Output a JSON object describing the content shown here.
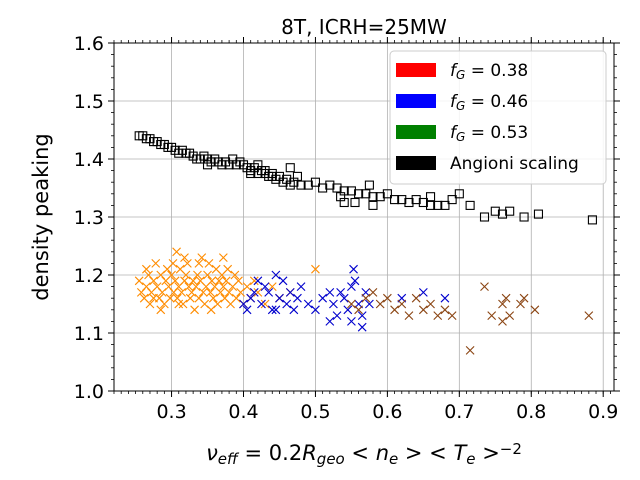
{
  "chart_data": {
    "type": "scatter",
    "title": "8T, ICRH=25MW",
    "xlabel": "ν_eff = 0.2R_geo < n_e > < T_e >^-2",
    "ylabel": "density peaking",
    "xlim": [
      0.22,
      0.915
    ],
    "ylim": [
      1.0,
      1.6
    ],
    "xticks": [
      0.3,
      0.4,
      0.5,
      0.6,
      0.7,
      0.8,
      0.9
    ],
    "xtick_labels": [
      "0.3",
      "0.4",
      "0.5",
      "0.6",
      "0.7",
      "0.8",
      "0.9"
    ],
    "yticks": [
      1.0,
      1.1,
      1.2,
      1.3,
      1.4,
      1.5,
      1.6
    ],
    "ytick_labels": [
      "1.0",
      "1.1",
      "1.2",
      "1.3",
      "1.4",
      "1.5",
      "1.6"
    ],
    "grid": true,
    "legend_position": "top-right",
    "legend": [
      {
        "label": "f_G = 0.38",
        "color": "#ff0000"
      },
      {
        "label": "f_G = 0.46",
        "color": "#0000ff"
      },
      {
        "label": "f_G = 0.53",
        "color": "#008000"
      },
      {
        "label": "Angioni scaling",
        "color": "#000000"
      }
    ],
    "series": [
      {
        "name": "f_G = 0.38",
        "marker": "x",
        "color": "#ff8c00",
        "points": [
          [
            0.255,
            1.19
          ],
          [
            0.258,
            1.17
          ],
          [
            0.262,
            1.16
          ],
          [
            0.265,
            1.18
          ],
          [
            0.268,
            1.2
          ],
          [
            0.27,
            1.15
          ],
          [
            0.272,
            1.17
          ],
          [
            0.275,
            1.19
          ],
          [
            0.278,
            1.22
          ],
          [
            0.28,
            1.18
          ],
          [
            0.283,
            1.16
          ],
          [
            0.285,
            1.2
          ],
          [
            0.287,
            1.17
          ],
          [
            0.29,
            1.15
          ],
          [
            0.292,
            1.19
          ],
          [
            0.294,
            1.21
          ],
          [
            0.296,
            1.18
          ],
          [
            0.298,
            1.16
          ],
          [
            0.3,
            1.2
          ],
          [
            0.302,
            1.22
          ],
          [
            0.303,
            1.17
          ],
          [
            0.305,
            1.19
          ],
          [
            0.307,
            1.24
          ],
          [
            0.308,
            1.16
          ],
          [
            0.31,
            1.18
          ],
          [
            0.312,
            1.21
          ],
          [
            0.314,
            1.17
          ],
          [
            0.316,
            1.15
          ],
          [
            0.318,
            1.19
          ],
          [
            0.32,
            1.2
          ],
          [
            0.322,
            1.22
          ],
          [
            0.324,
            1.18
          ],
          [
            0.326,
            1.16
          ],
          [
            0.328,
            1.17
          ],
          [
            0.33,
            1.19
          ],
          [
            0.332,
            1.14
          ],
          [
            0.334,
            1.18
          ],
          [
            0.336,
            1.2
          ],
          [
            0.338,
            1.16
          ],
          [
            0.34,
            1.19
          ],
          [
            0.342,
            1.23
          ],
          [
            0.344,
            1.17
          ],
          [
            0.346,
            1.15
          ],
          [
            0.348,
            1.18
          ],
          [
            0.35,
            1.2
          ],
          [
            0.352,
            1.22
          ],
          [
            0.354,
            1.17
          ],
          [
            0.356,
            1.19
          ],
          [
            0.358,
            1.16
          ],
          [
            0.36,
            1.18
          ],
          [
            0.362,
            1.21
          ],
          [
            0.364,
            1.15
          ],
          [
            0.366,
            1.19
          ],
          [
            0.368,
            1.17
          ],
          [
            0.37,
            1.2
          ],
          [
            0.372,
            1.18
          ],
          [
            0.374,
            1.16
          ],
          [
            0.376,
            1.19
          ],
          [
            0.378,
            1.21
          ],
          [
            0.38,
            1.17
          ],
          [
            0.382,
            1.15
          ],
          [
            0.385,
            1.18
          ],
          [
            0.388,
            1.2
          ],
          [
            0.39,
            1.16
          ],
          [
            0.393,
            1.19
          ],
          [
            0.396,
            1.17
          ],
          [
            0.4,
            1.15
          ],
          [
            0.405,
            1.18
          ],
          [
            0.41,
            1.16
          ],
          [
            0.415,
            1.19
          ],
          [
            0.42,
            1.17
          ],
          [
            0.43,
            1.15
          ],
          [
            0.44,
            1.18
          ],
          [
            0.45,
            1.16
          ],
          [
            0.465,
            1.17
          ],
          [
            0.5,
            1.21
          ],
          [
            0.265,
            1.21
          ],
          [
            0.285,
            1.14
          ],
          [
            0.318,
            1.23
          ],
          [
            0.338,
            1.22
          ],
          [
            0.372,
            1.23
          ],
          [
            0.355,
            1.14
          ],
          [
            0.31,
            1.15
          ],
          [
            0.275,
            1.16
          ]
        ]
      },
      {
        "name": "f_G = 0.46",
        "marker": "x",
        "color": "#0000cd",
        "points": [
          [
            0.4,
            1.15
          ],
          [
            0.405,
            1.14
          ],
          [
            0.41,
            1.16
          ],
          [
            0.415,
            1.17
          ],
          [
            0.42,
            1.19
          ],
          [
            0.425,
            1.15
          ],
          [
            0.43,
            1.18
          ],
          [
            0.435,
            1.17
          ],
          [
            0.44,
            1.14
          ],
          [
            0.445,
            1.2
          ],
          [
            0.45,
            1.16
          ],
          [
            0.455,
            1.19
          ],
          [
            0.46,
            1.15
          ],
          [
            0.465,
            1.17
          ],
          [
            0.47,
            1.14
          ],
          [
            0.475,
            1.16
          ],
          [
            0.48,
            1.18
          ],
          [
            0.49,
            1.15
          ],
          [
            0.5,
            1.14
          ],
          [
            0.51,
            1.16
          ],
          [
            0.52,
            1.12
          ],
          [
            0.525,
            1.15
          ],
          [
            0.53,
            1.13
          ],
          [
            0.535,
            1.17
          ],
          [
            0.54,
            1.16
          ],
          [
            0.545,
            1.14
          ],
          [
            0.55,
            1.18
          ],
          [
            0.553,
            1.21
          ],
          [
            0.555,
            1.19
          ],
          [
            0.56,
            1.15
          ],
          [
            0.565,
            1.13
          ],
          [
            0.57,
            1.17
          ],
          [
            0.575,
            1.15
          ],
          [
            0.62,
            1.16
          ],
          [
            0.65,
            1.17
          ],
          [
            0.68,
            1.16
          ],
          [
            0.445,
            1.14
          ],
          [
            0.52,
            1.17
          ],
          [
            0.55,
            1.12
          ],
          [
            0.565,
            1.11
          ]
        ]
      },
      {
        "name": "f_G = 0.53",
        "marker": "x",
        "color": "#8b4513",
        "points": [
          [
            0.55,
            1.15
          ],
          [
            0.56,
            1.14
          ],
          [
            0.57,
            1.16
          ],
          [
            0.58,
            1.17
          ],
          [
            0.59,
            1.15
          ],
          [
            0.6,
            1.16
          ],
          [
            0.61,
            1.14
          ],
          [
            0.62,
            1.15
          ],
          [
            0.63,
            1.13
          ],
          [
            0.64,
            1.16
          ],
          [
            0.65,
            1.14
          ],
          [
            0.66,
            1.15
          ],
          [
            0.67,
            1.13
          ],
          [
            0.68,
            1.14
          ],
          [
            0.69,
            1.13
          ],
          [
            0.715,
            1.07
          ],
          [
            0.735,
            1.18
          ],
          [
            0.745,
            1.13
          ],
          [
            0.76,
            1.15
          ],
          [
            0.765,
            1.16
          ],
          [
            0.77,
            1.13
          ],
          [
            0.785,
            1.15
          ],
          [
            0.79,
            1.16
          ],
          [
            0.805,
            1.14
          ],
          [
            0.88,
            1.13
          ],
          [
            0.76,
            1.12
          ]
        ]
      },
      {
        "name": "Angioni scaling",
        "marker": "square",
        "color": "#000000",
        "points": [
          [
            0.255,
            1.44
          ],
          [
            0.26,
            1.44
          ],
          [
            0.265,
            1.435
          ],
          [
            0.27,
            1.435
          ],
          [
            0.275,
            1.43
          ],
          [
            0.28,
            1.43
          ],
          [
            0.285,
            1.425
          ],
          [
            0.29,
            1.425
          ],
          [
            0.295,
            1.42
          ],
          [
            0.3,
            1.42
          ],
          [
            0.305,
            1.415
          ],
          [
            0.31,
            1.41
          ],
          [
            0.315,
            1.415
          ],
          [
            0.32,
            1.41
          ],
          [
            0.325,
            1.41
          ],
          [
            0.33,
            1.405
          ],
          [
            0.335,
            1.4
          ],
          [
            0.34,
            1.4
          ],
          [
            0.345,
            1.405
          ],
          [
            0.35,
            1.4
          ],
          [
            0.355,
            1.395
          ],
          [
            0.36,
            1.4
          ],
          [
            0.365,
            1.395
          ],
          [
            0.37,
            1.39
          ],
          [
            0.375,
            1.395
          ],
          [
            0.38,
            1.39
          ],
          [
            0.385,
            1.4
          ],
          [
            0.39,
            1.39
          ],
          [
            0.395,
            1.395
          ],
          [
            0.4,
            1.39
          ],
          [
            0.405,
            1.385
          ],
          [
            0.41,
            1.38
          ],
          [
            0.415,
            1.385
          ],
          [
            0.42,
            1.375
          ],
          [
            0.425,
            1.38
          ],
          [
            0.43,
            1.375
          ],
          [
            0.435,
            1.37
          ],
          [
            0.44,
            1.37
          ],
          [
            0.445,
            1.365
          ],
          [
            0.45,
            1.37
          ],
          [
            0.455,
            1.36
          ],
          [
            0.46,
            1.365
          ],
          [
            0.465,
            1.355
          ],
          [
            0.47,
            1.36
          ],
          [
            0.475,
            1.37
          ],
          [
            0.48,
            1.355
          ],
          [
            0.49,
            1.355
          ],
          [
            0.5,
            1.36
          ],
          [
            0.51,
            1.35
          ],
          [
            0.52,
            1.355
          ],
          [
            0.53,
            1.35
          ],
          [
            0.54,
            1.345
          ],
          [
            0.55,
            1.345
          ],
          [
            0.56,
            1.34
          ],
          [
            0.57,
            1.34
          ],
          [
            0.575,
            1.355
          ],
          [
            0.58,
            1.335
          ],
          [
            0.59,
            1.335
          ],
          [
            0.6,
            1.34
          ],
          [
            0.61,
            1.33
          ],
          [
            0.62,
            1.33
          ],
          [
            0.63,
            1.325
          ],
          [
            0.64,
            1.33
          ],
          [
            0.65,
            1.325
          ],
          [
            0.66,
            1.32
          ],
          [
            0.67,
            1.32
          ],
          [
            0.68,
            1.32
          ],
          [
            0.69,
            1.33
          ],
          [
            0.715,
            1.32
          ],
          [
            0.735,
            1.3
          ],
          [
            0.75,
            1.31
          ],
          [
            0.76,
            1.305
          ],
          [
            0.77,
            1.31
          ],
          [
            0.79,
            1.3
          ],
          [
            0.81,
            1.305
          ],
          [
            0.885,
            1.295
          ],
          [
            0.42,
            1.39
          ],
          [
            0.41,
            1.375
          ],
          [
            0.465,
            1.385
          ],
          [
            0.54,
            1.325
          ],
          [
            0.535,
            1.335
          ],
          [
            0.555,
            1.325
          ],
          [
            0.58,
            1.32
          ],
          [
            0.43,
            1.38
          ],
          [
            0.35,
            1.39
          ],
          [
            0.44,
            1.375
          ],
          [
            0.66,
            1.335
          ],
          [
            0.7,
            1.34
          ]
        ]
      }
    ]
  }
}
